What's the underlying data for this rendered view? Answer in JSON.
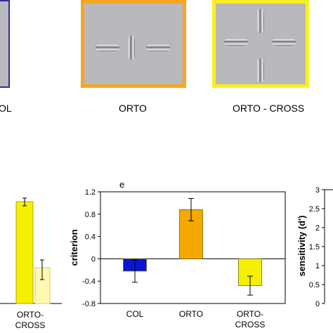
{
  "stimuli": [
    {
      "label": "OL",
      "border_color": "#2b2f9e"
    },
    {
      "label": "ORTO",
      "border_color": "#f5a623"
    },
    {
      "label": "ORTO - CROSS",
      "border_color": "#f7f020"
    }
  ],
  "left_panel": {
    "category_label_line1": "ORTO-",
    "category_label_line2": "CROSS"
  },
  "right_panel": {
    "ylabel": "sensitivity (d')",
    "ticks": [
      "3",
      "2.5",
      "2",
      "1.5",
      "1",
      "0.5",
      "0"
    ]
  },
  "chart_data": {
    "type": "bar",
    "panel_letter": "e",
    "categories": [
      "COL",
      "ORTO",
      "ORTO-CROSS"
    ],
    "values": [
      -0.22,
      0.88,
      -0.48
    ],
    "errors": [
      0.2,
      0.2,
      0.17
    ],
    "colors": [
      "#0a14d6",
      "#f5a800",
      "#f5f000"
    ],
    "ylabel": "criterion",
    "ylim": [
      -0.8,
      1.2
    ],
    "yticks": [
      1.2,
      0.8,
      0.4,
      0,
      -0.4,
      -0.8
    ],
    "ytick_labels": [
      "1.2",
      "0.8",
      "0.4",
      "0",
      "-0.4",
      "-0.8"
    ],
    "category_labels": [
      [
        "COL"
      ],
      [
        "ORTO"
      ],
      [
        "ORTO-",
        "CROSS"
      ]
    ]
  }
}
